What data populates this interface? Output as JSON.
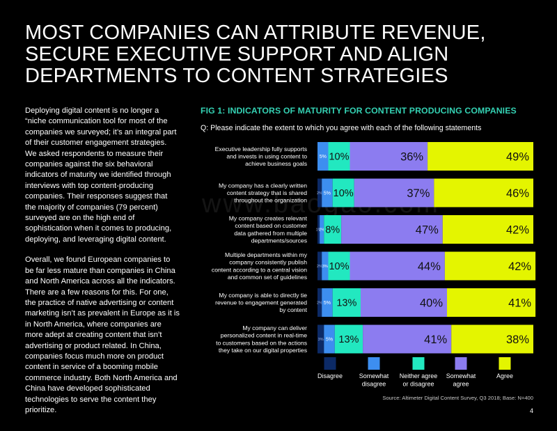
{
  "title": "MOST COMPANIES CAN ATTRIBUTE REVENUE, SECURE EXECUTIVE SUPPORT AND ALIGN DEPARTMENTS TO CONTENT STRATEGIES",
  "body": {
    "paragraphs": [
      "Deploying digital content is no longer a “niche communication tool for most of the companies we surveyed; it’s an integral part of their customer engagement strategies. We asked respondents to measure their companies against the six behavioral indicators of maturity we identified through interviews with top content-producing companies. Their responses suggest that the majority of companies (79 percent) surveyed are on the high end of sophistication when it comes to producing, deploying, and leveraging digital content.",
      "Overall, we found European companies to be far less mature than companies in China and North America across all the indicators. There are a few reasons for this. For one, the practice of native advertising or content marketing isn’t as prevalent in Europe as it is in North America, where companies are more adept at creating content that isn’t advertising or product related. In China, companies focus much more on product content in service of a booming mobile commerce industry. Both North America and China have developed sophisticated technologies to serve the content they prioritize."
    ]
  },
  "watermark": "www.baogao.com",
  "source": "Source: Altimeter Digital Content Survey, Q3 2018; Base: N=400",
  "page_number": "4",
  "colors": {
    "Disagree": "#0c2a66",
    "Somewhat disagree": "#3d8ef0",
    "Neither agree or disagree": "#22e8c0",
    "Somewhat agree": "#8c7cf0",
    "Agree": "#e4f500",
    "accent": "#34d1b3"
  },
  "chart_data": {
    "type": "bar",
    "orientation": "horizontal-stacked-100",
    "title": "FIG 1: INDICATORS OF MATURITY FOR CONTENT PRODUCING COMPANIES",
    "subtitle": "Q: Please indicate the extent to which you agree with each of the following statements",
    "categories": [
      "Executive leadership fully supports and invests in using content to achieve business goals",
      "My company has a clearly written content strategy that is shared throughout the organization",
      "My company creates relevant content based on customer data gathered from multiple departments/sources",
      "Multiple departments within my company consistently publish content according to a central vision and common set of guidelines",
      "My company is able to directly tie revenue to engagement generated by content",
      "My company can deliver personalized content in real-time to customers based on the actions they take on our digital properties"
    ],
    "category_lines": [
      [
        "Executive leadership fully supports",
        "and invests in using content to",
        "achieve business goals"
      ],
      [
        "My company has a clearly written",
        "content strategy that is shared",
        "throughout the organization"
      ],
      [
        "My company creates relevant",
        "content based on customer",
        "data gathered from multiple",
        "departments/sources"
      ],
      [
        "Multiple departments within my",
        "company consistently publish",
        "content according to a central vision",
        "and common set of guidelines"
      ],
      [
        "My company is able to directly tie",
        "revenue to engagement generated",
        "by content"
      ],
      [
        "My company can deliver",
        "personalized content in real-time",
        "to customers based on the actions",
        "they take on our digital properties"
      ]
    ],
    "series": [
      {
        "name": "Disagree",
        "values": [
          0,
          2,
          1,
          2,
          2,
          3
        ],
        "labels": [
          "",
          "2%",
          "1%",
          "2%",
          "2%",
          "3%"
        ]
      },
      {
        "name": "Somewhat disagree",
        "values": [
          5,
          5,
          2,
          3,
          5,
          5
        ],
        "labels": [
          "5%",
          "5%",
          "2%",
          "3%",
          "5%",
          "5%"
        ]
      },
      {
        "name": "Neither agree or disagree",
        "values": [
          10,
          10,
          8,
          10,
          13,
          13
        ],
        "labels": [
          "10%",
          "10%",
          "8%",
          "10%",
          "13%",
          "13%"
        ]
      },
      {
        "name": "Somewhat agree",
        "values": [
          36,
          37,
          47,
          44,
          40,
          41
        ],
        "labels": [
          "36%",
          "37%",
          "47%",
          "44%",
          "40%",
          "41%"
        ]
      },
      {
        "name": "Agree",
        "values": [
          49,
          46,
          42,
          42,
          41,
          38
        ],
        "labels": [
          "49%",
          "46%",
          "42%",
          "42%",
          "41%",
          "38%"
        ]
      }
    ],
    "legend": {
      "placement": "bottom",
      "entries": [
        [
          "Disagree"
        ],
        [
          "Somewhat",
          "disagree"
        ],
        [
          "Neither agree",
          "or disagree"
        ],
        [
          "Somewhat",
          "agree"
        ],
        [
          "Agree"
        ]
      ]
    },
    "xlim": [
      0,
      100
    ],
    "grid": false
  }
}
